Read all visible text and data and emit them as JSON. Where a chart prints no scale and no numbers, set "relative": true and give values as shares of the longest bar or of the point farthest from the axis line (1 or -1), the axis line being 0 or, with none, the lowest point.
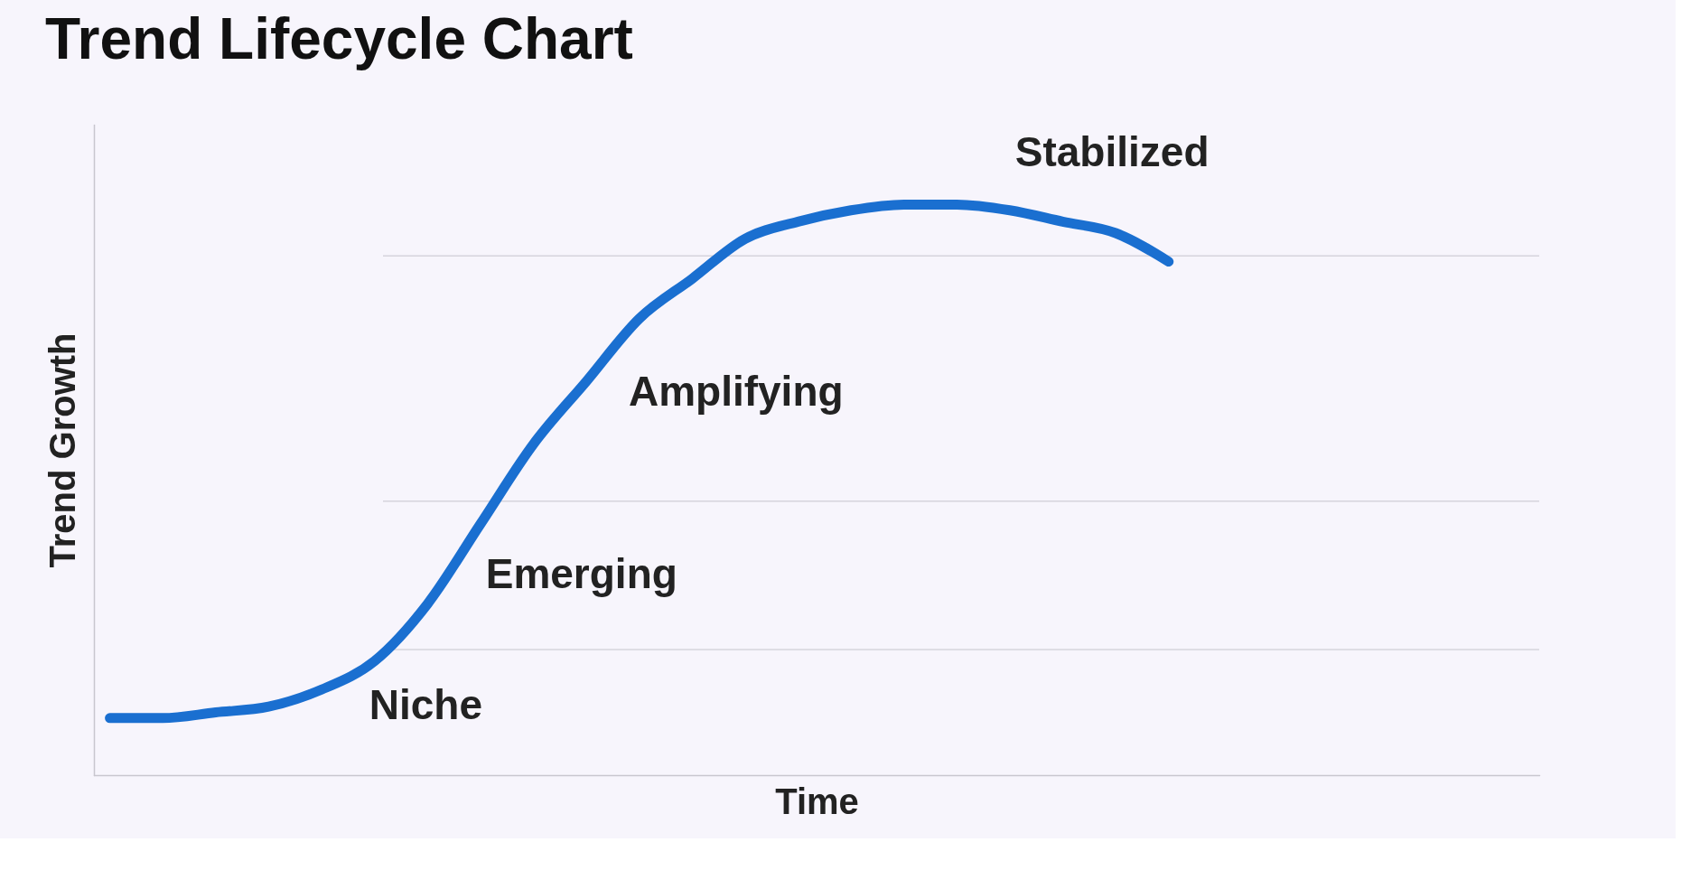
{
  "chart_data": {
    "type": "line",
    "title": "Trend Lifecycle Chart",
    "xlabel": "Time",
    "ylabel": "Trend Growth",
    "relative": true,
    "categories": [
      null,
      null,
      null,
      null,
      null,
      null,
      null,
      null,
      null,
      null,
      null,
      null,
      null,
      null,
      null,
      null,
      null,
      null,
      null,
      null,
      null,
      null,
      null,
      null,
      null,
      null,
      null,
      null
    ],
    "series": [
      {
        "color": "#1a6fd0",
        "values": [
          0.1,
          0.1,
          0.11,
          0.12,
          0.15,
          0.2,
          0.3,
          0.44,
          0.58,
          0.69,
          0.8,
          0.87,
          0.94,
          0.97,
          0.99,
          1.0,
          1.0,
          0.99,
          0.97,
          0.95,
          0.9,
          null,
          null,
          null,
          null,
          null,
          null,
          null
        ]
      }
    ],
    "ref_lines": [
      {
        "axis": "y",
        "value": 0.22,
        "color": "#d6d4dc"
      },
      {
        "axis": "y",
        "value": 0.48,
        "color": "#d6d4dc"
      },
      {
        "axis": "y",
        "value": 0.91,
        "color": "#d6d4dc"
      }
    ],
    "annotations": [
      "Niche",
      "Emerging",
      "Amplifying",
      "Stabilized"
    ],
    "grid": false,
    "line_style": "solid"
  }
}
